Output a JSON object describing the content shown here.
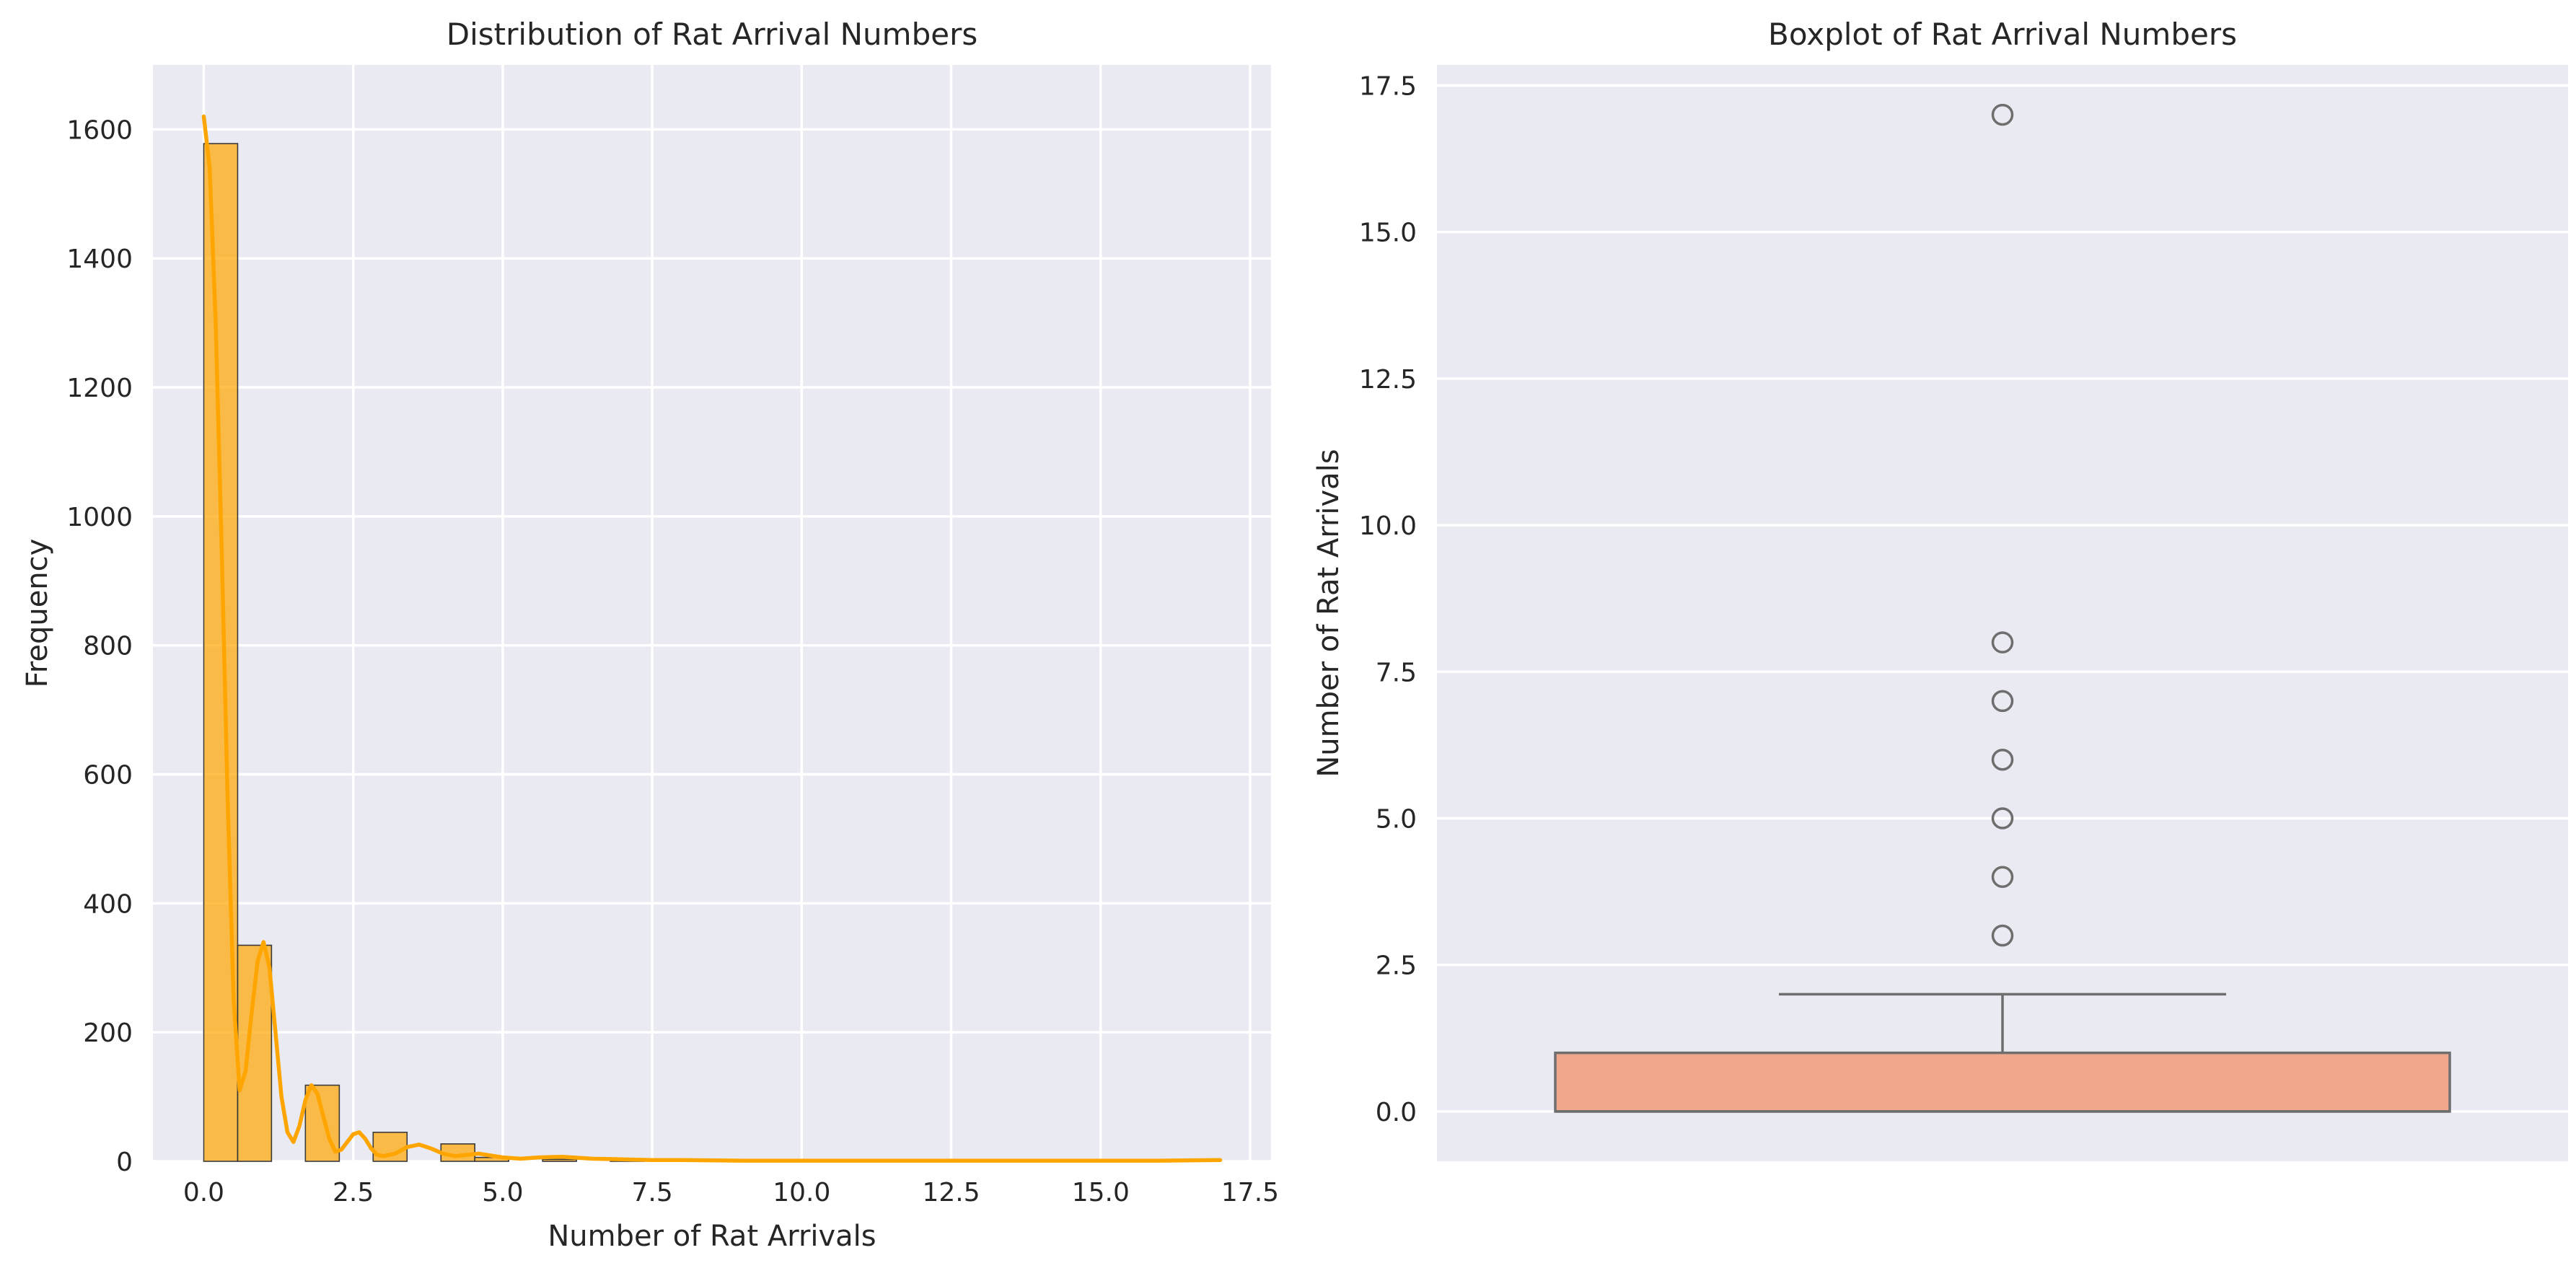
{
  "chart_data": [
    {
      "type": "bar",
      "title": "Distribution of Rat Arrival Numbers",
      "xlabel": "Number of Rat Arrivals",
      "ylabel": "Frequency",
      "xlim": [
        -0.85,
        17.85
      ],
      "ylim": [
        0,
        1700
      ],
      "xticks": [
        0.0,
        2.5,
        5.0,
        7.5,
        10.0,
        12.5,
        15.0,
        17.5
      ],
      "xtick_labels": [
        "0.0",
        "2.5",
        "5.0",
        "7.5",
        "10.0",
        "12.5",
        "15.0",
        "17.5"
      ],
      "yticks": [
        0,
        200,
        400,
        600,
        800,
        1000,
        1200,
        1400,
        1600
      ],
      "ytick_labels": [
        "0",
        "200",
        "400",
        "600",
        "800",
        "1000",
        "1200",
        "1400",
        "1600"
      ],
      "grid": true,
      "bar_color": "#FFA500",
      "bins": [
        {
          "x0": 0.0,
          "x1": 0.567,
          "count": 1578
        },
        {
          "x0": 0.567,
          "x1": 1.133,
          "count": 335
        },
        {
          "x0": 1.7,
          "x1": 2.267,
          "count": 118
        },
        {
          "x0": 2.833,
          "x1": 3.4,
          "count": 45
        },
        {
          "x0": 3.967,
          "x1": 4.533,
          "count": 27
        },
        {
          "x0": 4.533,
          "x1": 5.1,
          "count": 6
        },
        {
          "x0": 5.667,
          "x1": 6.233,
          "count": 3
        },
        {
          "x0": 6.8,
          "x1": 7.367,
          "count": 1
        },
        {
          "x0": 7.933,
          "x1": 8.5,
          "count": 1
        },
        {
          "x0": 16.433,
          "x1": 17.0,
          "count": 1
        }
      ],
      "kde": {
        "name": "",
        "color": "#FFA500",
        "x": [
          0.0,
          0.1,
          0.2,
          0.3,
          0.4,
          0.5,
          0.6,
          0.7,
          0.8,
          0.9,
          1.0,
          1.1,
          1.2,
          1.3,
          1.4,
          1.5,
          1.6,
          1.7,
          1.8,
          1.9,
          2.0,
          2.1,
          2.2,
          2.3,
          2.4,
          2.5,
          2.6,
          2.7,
          2.8,
          2.9,
          3.0,
          3.2,
          3.4,
          3.6,
          3.8,
          4.0,
          4.2,
          4.4,
          4.6,
          4.8,
          5.0,
          5.3,
          5.6,
          6.0,
          6.5,
          7.0,
          7.5,
          8.0,
          9.0,
          10.0,
          12.0,
          14.0,
          16.0,
          17.0
        ],
        "y": [
          1620,
          1540,
          1300,
          950,
          560,
          250,
          110,
          140,
          230,
          310,
          340,
          300,
          200,
          100,
          45,
          30,
          55,
          95,
          118,
          105,
          70,
          35,
          15,
          18,
          30,
          42,
          45,
          35,
          20,
          10,
          8,
          12,
          22,
          26,
          20,
          12,
          8,
          10,
          12,
          9,
          6,
          4,
          6,
          7,
          4,
          3,
          2,
          2,
          1,
          1,
          1,
          1,
          1,
          2
        ]
      }
    },
    {
      "type": "box",
      "title": "Boxplot of Rat Arrival Numbers",
      "xlabel": "",
      "ylabel": "Number of Rat Arrivals",
      "ylim": [
        -0.85,
        17.85
      ],
      "yticks": [
        0.0,
        2.5,
        5.0,
        7.5,
        10.0,
        12.5,
        15.0,
        17.5
      ],
      "ytick_labels": [
        "0.0",
        "2.5",
        "5.0",
        "7.5",
        "10.0",
        "12.5",
        "15.0",
        "17.5"
      ],
      "grid": true,
      "box_color": "#F0A88C",
      "line_color": "#6E6E6E",
      "stats": {
        "q1": 0,
        "median": 0,
        "q3": 1,
        "whisker_low": 0,
        "whisker_high": 2
      },
      "outliers": [
        3,
        4,
        5,
        6,
        7,
        8,
        17
      ]
    }
  ]
}
